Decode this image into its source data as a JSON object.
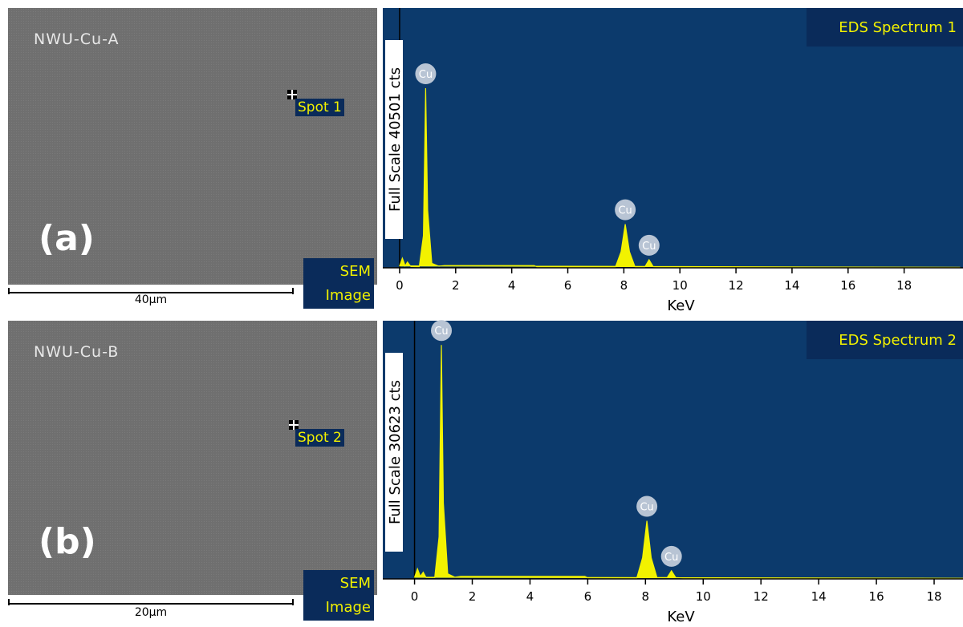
{
  "sem_images": [
    {
      "label": "(a)",
      "sample": "NWU-Cu-A",
      "spot": "Spot 1",
      "tag": "SEM Image",
      "scale_bar": "40μm"
    },
    {
      "label": "(b)",
      "sample": "NWU-Cu-B",
      "spot": "Spot 2",
      "tag": "SEM Image",
      "scale_bar": "20μm"
    }
  ],
  "chart_data": [
    {
      "type": "area",
      "title": "EDS Spectrum 1",
      "ylabel": "Full Scale 40501 cts",
      "xlabel": "KeV",
      "color": "#f2f200",
      "x": [
        0,
        0.1,
        0.2,
        0.28,
        0.4,
        0.7,
        0.85,
        0.93,
        1.0,
        1.15,
        1.4,
        1.6,
        4.8,
        4.9,
        7.7,
        7.9,
        8.05,
        8.2,
        8.4,
        8.75,
        8.9,
        9.05,
        9.3,
        20
      ],
      "y": [
        300,
        1500,
        300,
        900,
        200,
        150,
        5000,
        28000,
        9000,
        700,
        250,
        350,
        350,
        150,
        120,
        2500,
        6800,
        2500,
        150,
        150,
        1260,
        150,
        100,
        80
      ],
      "xlim": [
        -0.6,
        20.1
      ],
      "ylim": [
        0,
        40501
      ],
      "xticks": [
        0,
        2,
        4,
        6,
        8,
        10,
        12,
        14,
        16,
        18
      ],
      "annotations": [
        {
          "text": "Cu",
          "x": 0.93,
          "y": 28000
        },
        {
          "text": "Cu",
          "x": 8.05,
          "y": 6800
        },
        {
          "text": "Cu",
          "x": 8.9,
          "y": 1260
        }
      ]
    },
    {
      "type": "area",
      "title": "EDS Spectrum 2",
      "ylabel": "Full Scale 30623 cts",
      "xlabel": "KeV",
      "color": "#f2f200",
      "x": [
        0,
        0.1,
        0.2,
        0.3,
        0.4,
        0.7,
        0.85,
        0.93,
        1.0,
        1.15,
        1.4,
        1.6,
        5.9,
        6.0,
        7.7,
        7.9,
        8.05,
        8.2,
        8.4,
        8.75,
        8.9,
        9.05,
        9.3,
        19
      ],
      "y": [
        200,
        1200,
        300,
        800,
        150,
        150,
        5000,
        27750,
        9000,
        600,
        200,
        300,
        300,
        120,
        100,
        2500,
        6890,
        2500,
        150,
        150,
        960,
        150,
        100,
        80
      ],
      "xlim": [
        -1.1,
        19.0
      ],
      "ylim": [
        0,
        30623
      ],
      "xticks": [
        0,
        2,
        4,
        6,
        8,
        10,
        12,
        14,
        16,
        18
      ],
      "annotations": [
        {
          "text": "Cu",
          "x": 0.93,
          "y": 27750
        },
        {
          "text": "Cu",
          "x": 8.05,
          "y": 6890
        },
        {
          "text": "Cu",
          "x": 8.9,
          "y": 960
        }
      ]
    }
  ]
}
